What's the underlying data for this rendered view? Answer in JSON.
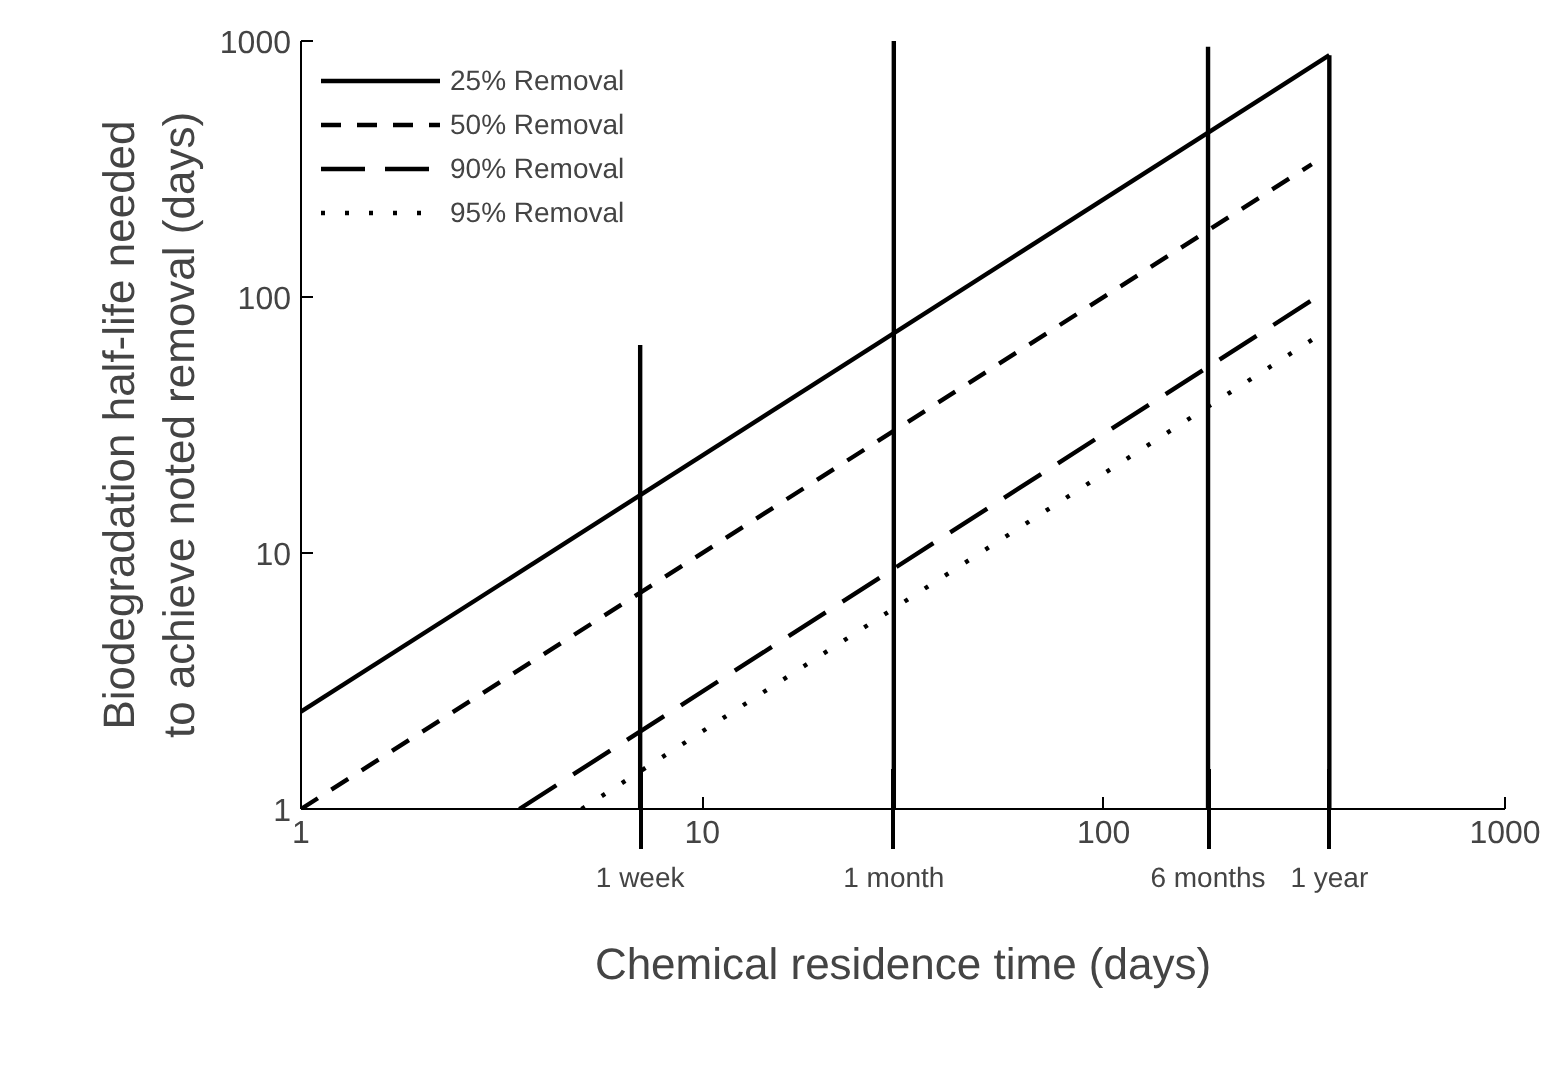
{
  "chart_data": {
    "type": "line",
    "xlabel": "Chemical residence time (days)",
    "ylabel": "Biodegradation half-life needed\nto achieve noted removal (days)",
    "log": "xy",
    "xlim": [
      1,
      1000
    ],
    "ylim": [
      1,
      1000
    ],
    "xticks": [
      1,
      10,
      100,
      1000
    ],
    "yticks": [
      1,
      10,
      100,
      1000
    ],
    "grid": false,
    "legend": "top left",
    "series": [
      {
        "name": "25% Removal",
        "color": "#000000",
        "line_style": "solid",
        "x": [
          1,
          365
        ],
        "values": [
          2.4,
          880
        ]
      },
      {
        "name": "50% Removal",
        "color": "#000000",
        "line_style": "dashed",
        "x": [
          1,
          330
        ],
        "values": [
          1,
          330
        ]
      },
      {
        "name": "90% Removal",
        "color": "#000000",
        "line_style": "longdash",
        "x": [
          3.5,
          340
        ],
        "values": [
          1,
          100
        ]
      },
      {
        "name": "95% Removal",
        "color": "#000000",
        "line_style": "dotted",
        "x": [
          5,
          340
        ],
        "values": [
          1,
          70
        ]
      },
      {
        "color": "#000000",
        "line_style": "solid",
        "x": [
          7,
          7
        ],
        "values": [
          1,
          65
        ]
      },
      {
        "color": "#000000",
        "line_style": "solid",
        "x": [
          30,
          30
        ],
        "values": [
          1,
          1000
        ]
      },
      {
        "color": "#000000",
        "line_style": "solid",
        "x": [
          182,
          182
        ],
        "values": [
          1,
          950
        ]
      },
      {
        "color": "#000000",
        "line_style": "solid",
        "x": [
          365,
          365
        ],
        "values": [
          1,
          880
        ]
      }
    ],
    "annotations": [
      {
        "text": "1 week",
        "x": 7
      },
      {
        "text": "1 month",
        "x": 30
      },
      {
        "text": "6 months",
        "x": 182
      },
      {
        "text": "1 year",
        "x": 365
      }
    ]
  }
}
